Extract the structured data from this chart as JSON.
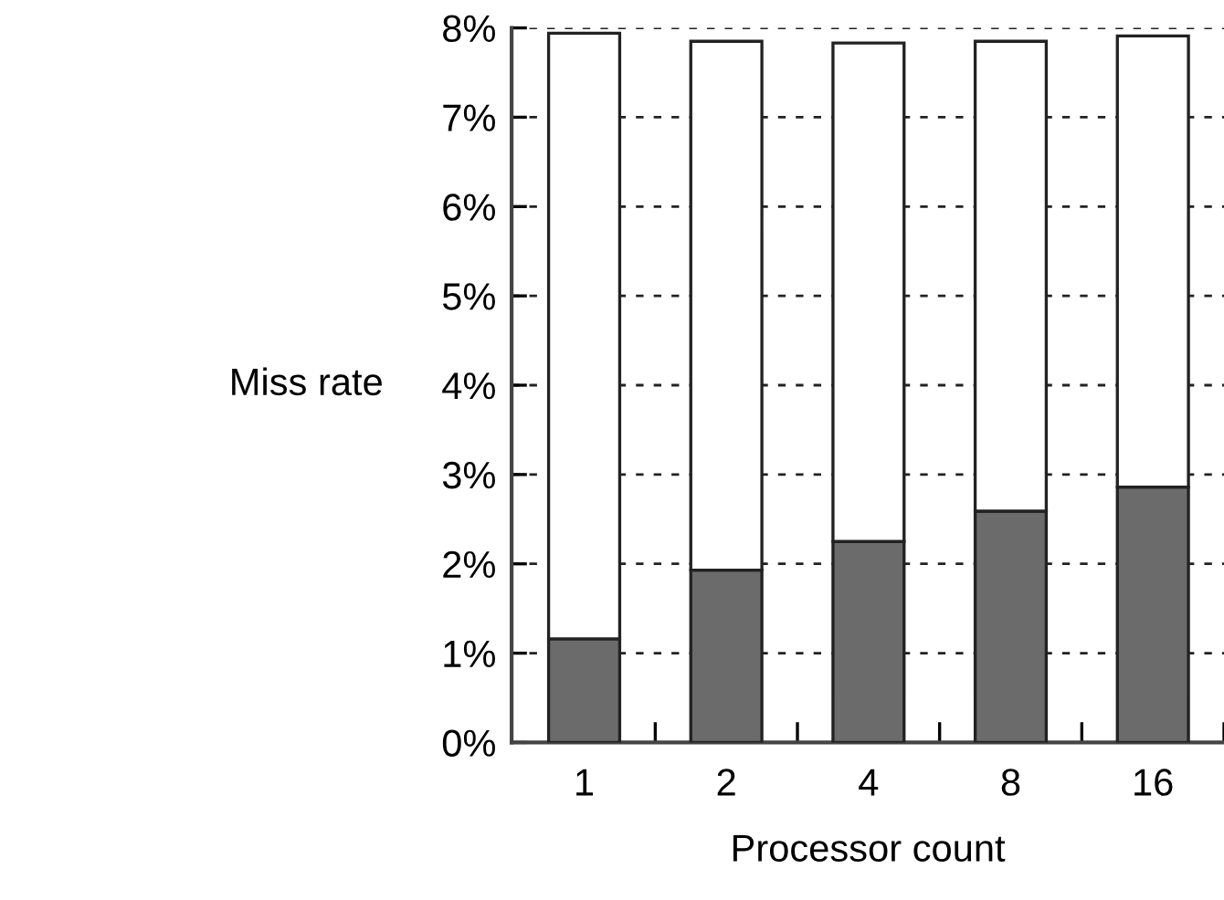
{
  "chart_data": {
    "type": "bar",
    "stacked": true,
    "xlabel": "Processor count",
    "ylabel": "Miss rate",
    "categories": [
      "1",
      "2",
      "4",
      "8",
      "16"
    ],
    "series": [
      {
        "color": "#6b6b6b",
        "values": [
          1.16,
          1.93,
          2.25,
          2.59,
          2.86
        ]
      },
      {
        "color": "#ffffff",
        "values": [
          6.78,
          5.92,
          5.58,
          5.26,
          5.05
        ]
      }
    ],
    "ylim": [
      0,
      8
    ],
    "yticks": [
      {
        "value": 0,
        "label": "0%"
      },
      {
        "value": 1,
        "label": "1%"
      },
      {
        "value": 2,
        "label": "2%"
      },
      {
        "value": 3,
        "label": "3%"
      },
      {
        "value": 4,
        "label": "4%"
      },
      {
        "value": 5,
        "label": "5%"
      },
      {
        "value": 6,
        "label": "6%"
      },
      {
        "value": 7,
        "label": "7%"
      },
      {
        "value": 8,
        "label": "8%"
      }
    ],
    "grid": "y"
  }
}
